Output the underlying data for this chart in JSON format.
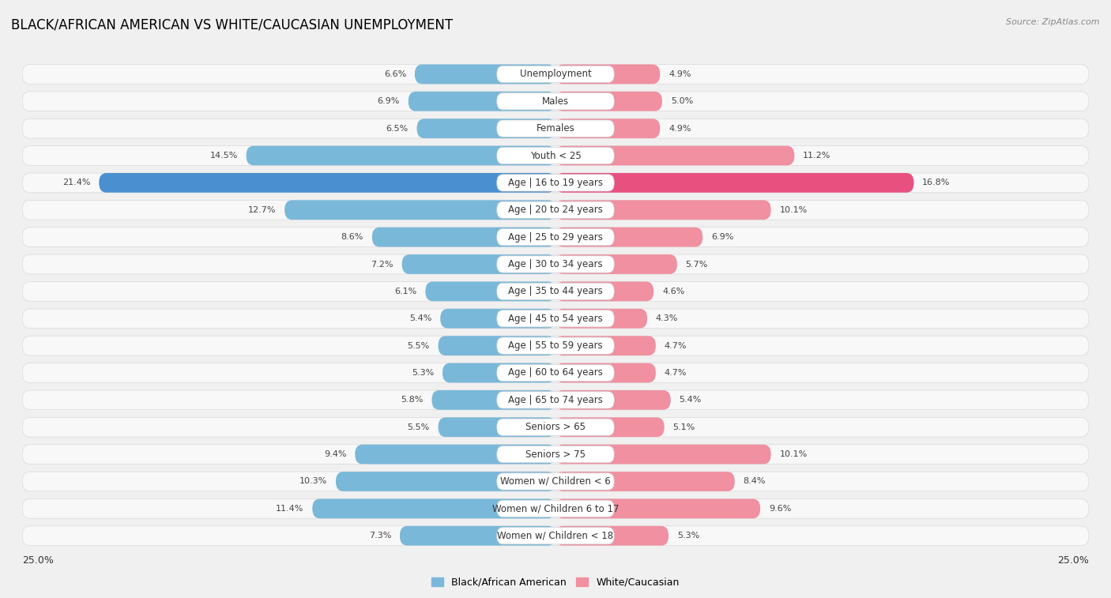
{
  "title": "Black/African American vs White/Caucasian Unemployment",
  "source": "Source: ZipAtlas.com",
  "categories": [
    "Unemployment",
    "Males",
    "Females",
    "Youth < 25",
    "Age | 16 to 19 years",
    "Age | 20 to 24 years",
    "Age | 25 to 29 years",
    "Age | 30 to 34 years",
    "Age | 35 to 44 years",
    "Age | 45 to 54 years",
    "Age | 55 to 59 years",
    "Age | 60 to 64 years",
    "Age | 65 to 74 years",
    "Seniors > 65",
    "Seniors > 75",
    "Women w/ Children < 6",
    "Women w/ Children 6 to 17",
    "Women w/ Children < 18"
  ],
  "black_values": [
    6.6,
    6.9,
    6.5,
    14.5,
    21.4,
    12.7,
    8.6,
    7.2,
    6.1,
    5.4,
    5.5,
    5.3,
    5.8,
    5.5,
    9.4,
    10.3,
    11.4,
    7.3
  ],
  "white_values": [
    4.9,
    5.0,
    4.9,
    11.2,
    16.8,
    10.1,
    6.9,
    5.7,
    4.6,
    4.3,
    4.7,
    4.7,
    5.4,
    5.1,
    10.1,
    8.4,
    9.6,
    5.3
  ],
  "black_color": "#7ab8d9",
  "white_color": "#f090a0",
  "highlight_black_color": "#4a90d0",
  "highlight_white_color": "#e85080",
  "highlight_row": 4,
  "xlim": 25.0,
  "bg_color": "#f0f0f0",
  "row_bg_color": "#f8f8f8",
  "row_border_color": "#d8d8d8",
  "title_fontsize": 12,
  "label_fontsize": 8.5,
  "value_fontsize": 8,
  "legend_black": "Black/African American",
  "legend_white": "White/Caucasian"
}
